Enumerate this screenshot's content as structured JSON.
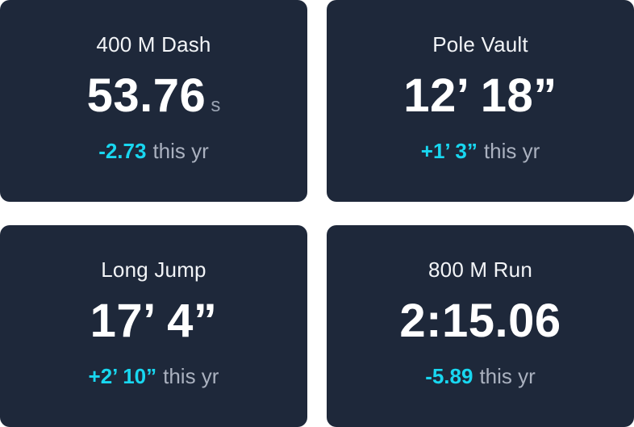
{
  "cards": [
    {
      "title": "400 M Dash",
      "value": "53.76",
      "unit": "s",
      "delta": "-2.73",
      "suffix": "this yr"
    },
    {
      "title": "Pole Vault",
      "value": "12’ 18”",
      "unit": "",
      "delta": "+1’ 3”",
      "suffix": "this yr"
    },
    {
      "title": "Long Jump",
      "value": "17’ 4”",
      "unit": "",
      "delta": "+2’ 10”",
      "suffix": "this yr"
    },
    {
      "title": "800 M Run",
      "value": "2:15.06",
      "unit": "",
      "delta": "-5.89",
      "suffix": "this yr"
    }
  ],
  "colors": {
    "card_bg": "#1e283a",
    "accent": "#18d7f0",
    "muted": "#aab1bf",
    "text": "#ffffff"
  }
}
